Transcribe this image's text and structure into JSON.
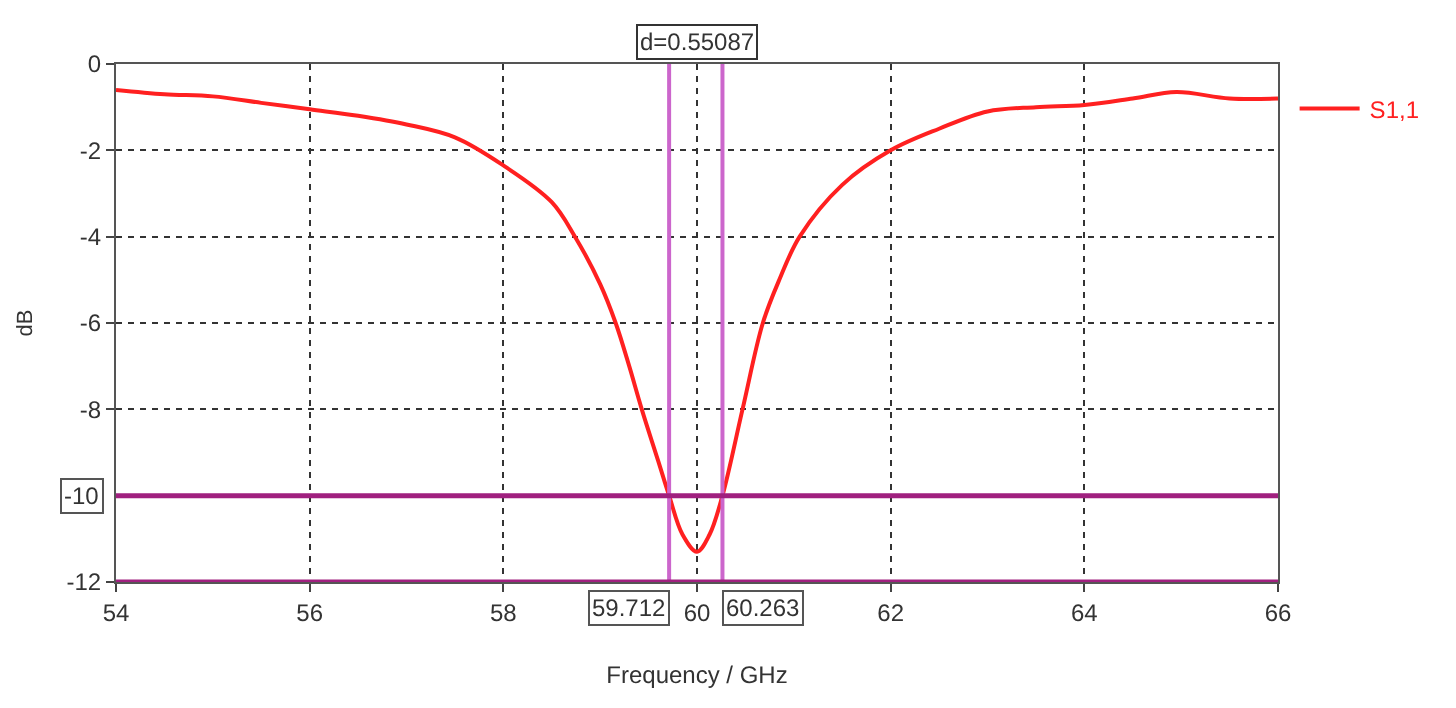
{
  "chart_data": {
    "type": "line",
    "xlabel": "Frequency / GHz",
    "ylabel": "dB",
    "x": [
      54,
      54.5,
      55,
      55.5,
      56,
      56.5,
      57,
      57.5,
      58,
      58.5,
      58.74,
      59.0,
      59.16,
      59.3,
      59.43,
      59.6,
      59.712,
      59.85,
      60.0,
      60.13,
      60.263,
      60.47,
      60.68,
      60.85,
      61.06,
      61.5,
      62,
      62.5,
      63,
      63.5,
      64,
      64.5,
      64.95,
      65.5,
      66
    ],
    "series": [
      {
        "name": "S1,1",
        "color": "#ff2020",
        "values": [
          -0.6,
          -0.7,
          -0.75,
          -0.9,
          -1.05,
          -1.2,
          -1.4,
          -1.7,
          -2.35,
          -3.2,
          -4.0,
          -5.1,
          -6.0,
          -7.0,
          -8.0,
          -9.2,
          -10.0,
          -10.9,
          -11.3,
          -10.9,
          -10.0,
          -8.0,
          -6.0,
          -5.0,
          -4.0,
          -2.8,
          -2.0,
          -1.5,
          -1.1,
          -1.0,
          -0.95,
          -0.8,
          -0.65,
          -0.8,
          -0.8
        ]
      }
    ],
    "xlim": [
      54,
      66
    ],
    "ylim": [
      -12,
      0
    ],
    "xticks": [
      54,
      56,
      58,
      60,
      62,
      64,
      66
    ],
    "yticks": [
      0,
      -2,
      -4,
      -6,
      -8,
      -12
    ],
    "ref_lines": [
      {
        "axis": "x",
        "value": 59.712,
        "label": "59.712",
        "color": "#cc66cc"
      },
      {
        "axis": "x",
        "value": 60.263,
        "label": "60.263",
        "color": "#cc66cc"
      },
      {
        "axis": "y",
        "value": -10,
        "label": "-10",
        "color": "#a0207f"
      },
      {
        "axis": "y",
        "value": -12,
        "label": null,
        "color": "#a0207f"
      }
    ],
    "annotations": [
      "d=0.55087"
    ],
    "grid": true,
    "legend": "right",
    "line_style": "solid",
    "marker": "none"
  }
}
